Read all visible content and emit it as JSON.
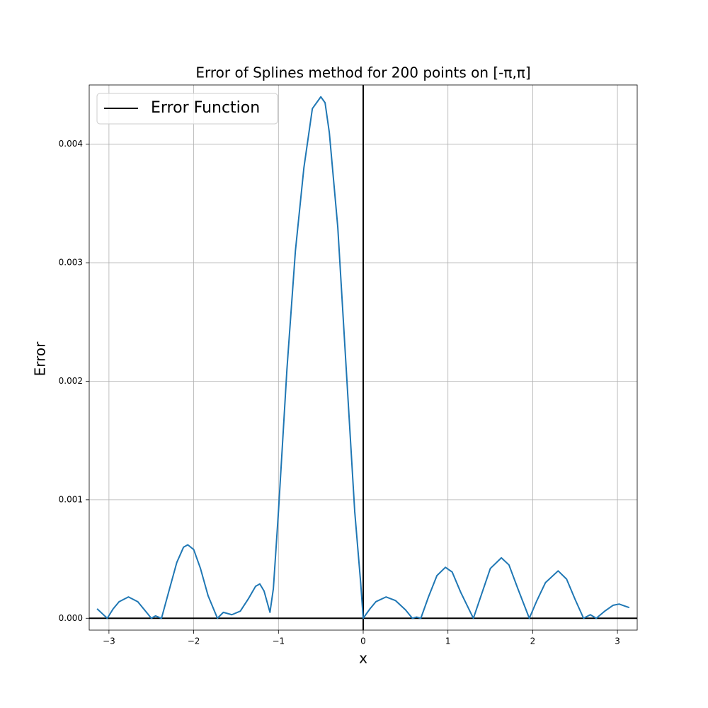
{
  "chart_data": {
    "type": "line",
    "title": "Error of Splines method for 200 points on [-π,π]",
    "xlabel": "x",
    "ylabel": "Error",
    "x": [
      -3.14,
      -3.08,
      -3.02,
      -2.95,
      -2.88,
      -2.77,
      -2.66,
      -2.58,
      -2.5,
      -2.45,
      -2.38,
      -2.3,
      -2.2,
      -2.12,
      -2.07,
      -2.0,
      -1.92,
      -1.83,
      -1.72,
      -1.65,
      -1.55,
      -1.45,
      -1.35,
      -1.27,
      -1.22,
      -1.17,
      -1.1,
      -1.06,
      -1.0,
      -0.9,
      -0.8,
      -0.7,
      -0.6,
      -0.5,
      -0.45,
      -0.4,
      -0.3,
      -0.2,
      -0.1,
      -0.03,
      0.0,
      0.08,
      0.15,
      0.27,
      0.38,
      0.5,
      0.58,
      0.63,
      0.68,
      0.77,
      0.87,
      0.97,
      1.05,
      1.15,
      1.3,
      1.4,
      1.5,
      1.63,
      1.72,
      1.83,
      1.96,
      2.05,
      2.15,
      2.3,
      2.4,
      2.5,
      2.6,
      2.68,
      2.75,
      2.85,
      2.95,
      3.02,
      3.1,
      3.14
    ],
    "values": [
      8e-05,
      4e-05,
      0.0,
      8e-05,
      0.00014,
      0.00018,
      0.00014,
      7e-05,
      0.0,
      2e-05,
      0.0,
      0.00021,
      0.00047,
      0.0006,
      0.00062,
      0.00058,
      0.00042,
      0.00019,
      0.0,
      5e-05,
      3e-05,
      6e-05,
      0.00017,
      0.00027,
      0.00029,
      0.00023,
      5e-05,
      0.00025,
      0.0009,
      0.0021,
      0.0031,
      0.0038,
      0.0043,
      0.0044,
      0.00435,
      0.0041,
      0.0033,
      0.0021,
      0.0009,
      0.0003,
      0.0,
      8e-05,
      0.00014,
      0.00018,
      0.00015,
      7e-05,
      0.0,
      1e-05,
      0.0,
      0.00018,
      0.00036,
      0.00043,
      0.00039,
      0.00022,
      0.0,
      0.00021,
      0.00042,
      0.00051,
      0.00045,
      0.00024,
      0.0,
      0.00015,
      0.0003,
      0.0004,
      0.00033,
      0.00016,
      0.0,
      3e-05,
      0.0,
      6e-05,
      0.00011,
      0.00012,
      0.0001,
      9e-05
    ],
    "color": "#1f77b4",
    "hlines": [
      0
    ],
    "vlines": [
      0
    ],
    "ref_color": "#000000",
    "legend": {
      "label": "Error Function",
      "color": "#000000",
      "loc": "upper left"
    },
    "xlim": [
      -3.233,
      3.233
    ],
    "ylim": [
      -0.0001,
      0.0045
    ],
    "xticks": [
      {
        "value": -3,
        "label": "−3"
      },
      {
        "value": -2,
        "label": "−2"
      },
      {
        "value": -1,
        "label": "−1"
      },
      0,
      1,
      2,
      3
    ],
    "yticks": [
      {
        "value": 0,
        "label": "0.000"
      },
      {
        "value": 0.001,
        "label": "0.001"
      },
      {
        "value": 0.002,
        "label": "0.002"
      },
      {
        "value": 0.003,
        "label": "0.003"
      },
      {
        "value": 0.004,
        "label": "0.004"
      }
    ],
    "grid": true
  }
}
